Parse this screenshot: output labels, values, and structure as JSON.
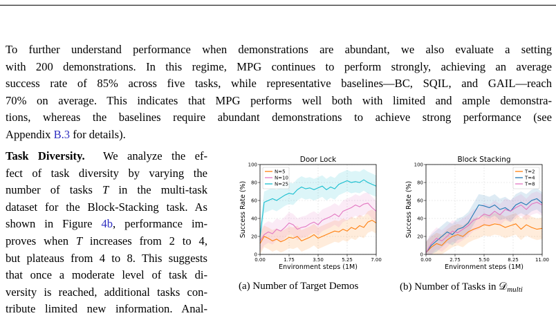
{
  "para1": [
    "To further understand performance when demonstrations are abundant, we also evaluate a setting",
    "with 200 demonstrations. In this regime, MPG continues to perform strongly, achieving an average",
    "success rate of 85% across five tasks, while representative baselines—BC, SQIL, and GAIL—reach",
    "70% on average. This indicates that MPG performs well both with limited and ample demonstra-",
    "tions, whereas the baselines require abundant demonstrations to achieve strong performance (see"
  ],
  "para1_last_prefix": "Appendix ",
  "para1_last_ref": "B.3",
  "para1_last_suffix": " for details).",
  "left_heading": "Task Diversity.",
  "left_l1_rest": "  We analyze the ef-",
  "left_l2": "fect of task diversity by varying the",
  "left_l3a": "number of tasks ",
  "left_l3_T": "T",
  "left_l3b": " in the multi-task",
  "left_l4": "dataset for the Block-Stacking task. As",
  "left_l5a": "shown in Figure ",
  "left_l5_ref": "4b",
  "left_l5b": ", performance im-",
  "left_l6a": "proves when ",
  "left_l6_T": "T",
  "left_l6b": " increases from 2 to 4,",
  "left_l7": "but plateaus from 4 to 8. This suggests",
  "left_l8": "that once a moderate level of task di-",
  "left_l9": "versity is reached, additional tasks con-",
  "left_l10": "tribute limited new information. Anal-",
  "caption_a": "(a) Number of Target Demos",
  "caption_b_prefix": "(b) Number of Tasks in ",
  "caption_b_D": "𝒟",
  "caption_b_sub": "multi",
  "chart_data": [
    {
      "type": "line",
      "title": "Door Lock",
      "xlabel": "Environment steps (1M)",
      "ylabel": "Success Rate (%)",
      "xlim": [
        0,
        7
      ],
      "ylim": [
        0,
        100
      ],
      "xticks": [
        "0.00",
        "1.75",
        "3.50",
        "5.25",
        "7.00"
      ],
      "yticks": [
        "0",
        "20",
        "40",
        "60",
        "80",
        "100"
      ],
      "grid": true,
      "legend": "top-left",
      "series": [
        {
          "name": "N=5",
          "color": "#ff7f0e",
          "x": [
            0,
            0.25,
            0.5,
            0.75,
            1.0,
            1.25,
            1.5,
            1.75,
            2.0,
            2.25,
            2.5,
            2.75,
            3.0,
            3.25,
            3.5,
            3.75,
            4.0,
            4.25,
            4.5,
            4.75,
            5.0,
            5.25,
            5.5,
            5.75,
            6.0,
            6.25,
            6.5,
            6.75,
            7.0
          ],
          "y": [
            12,
            20,
            18,
            15,
            17,
            14,
            16,
            19,
            18,
            20,
            15,
            17,
            19,
            22,
            18,
            20,
            22,
            24,
            26,
            25,
            28,
            26,
            30,
            28,
            32,
            30,
            36,
            38,
            35
          ]
        },
        {
          "name": "N=10",
          "color": "#e377c2",
          "x": [
            0,
            0.25,
            0.5,
            0.75,
            1.0,
            1.25,
            1.5,
            1.75,
            2.0,
            2.25,
            2.5,
            2.75,
            3.0,
            3.25,
            3.5,
            3.75,
            4.0,
            4.25,
            4.5,
            4.75,
            5.0,
            5.25,
            5.5,
            5.75,
            6.0,
            6.25,
            6.5,
            6.75,
            7.0
          ],
          "y": [
            15,
            22,
            25,
            23,
            28,
            26,
            30,
            35,
            33,
            28,
            30,
            31,
            34,
            36,
            33,
            38,
            40,
            42,
            45,
            42,
            48,
            50,
            52,
            55,
            53,
            56,
            57,
            52,
            48
          ]
        },
        {
          "name": "N=25",
          "color": "#17becf",
          "x": [
            0,
            0.25,
            0.5,
            0.75,
            1.0,
            1.25,
            1.5,
            1.75,
            2.0,
            2.25,
            2.5,
            2.75,
            3.0,
            3.25,
            3.5,
            3.75,
            4.0,
            4.25,
            4.5,
            4.75,
            5.0,
            5.25,
            5.5,
            5.75,
            6.0,
            6.25,
            6.5,
            6.75,
            7.0
          ],
          "y": [
            20,
            58,
            60,
            62,
            60,
            63,
            66,
            68,
            67,
            72,
            75,
            73,
            74,
            72,
            74,
            76,
            72,
            75,
            73,
            78,
            80,
            82,
            80,
            81,
            80,
            83,
            80,
            78,
            76
          ]
        }
      ]
    },
    {
      "type": "line",
      "title": "Block Stacking",
      "xlabel": "Environment steps (1M)",
      "ylabel": "Success Rate (%)",
      "xlim": [
        0,
        11
      ],
      "ylim": [
        0,
        100
      ],
      "xticks": [
        "0.00",
        "2.75",
        "5.50",
        "8.25",
        "11.00"
      ],
      "yticks": [
        "0",
        "20",
        "40",
        "60",
        "80",
        "100"
      ],
      "grid": true,
      "legend": "top-right",
      "series": [
        {
          "name": "T=2",
          "color": "#ff7f0e",
          "x": [
            0,
            0.5,
            1.0,
            1.5,
            2.0,
            2.5,
            3.0,
            3.5,
            4.0,
            4.5,
            5.0,
            5.5,
            6.0,
            6.5,
            7.0,
            7.5,
            8.0,
            8.5,
            9.0,
            9.5,
            10.0,
            10.5,
            11.0
          ],
          "y": [
            2,
            8,
            12,
            10,
            16,
            20,
            22,
            20,
            25,
            28,
            30,
            33,
            32,
            34,
            33,
            30,
            32,
            34,
            28,
            33,
            30,
            28,
            29
          ]
        },
        {
          "name": "T=4",
          "color": "#1f77b4",
          "x": [
            0,
            0.5,
            1.0,
            1.5,
            2.0,
            2.5,
            3.0,
            3.5,
            4.0,
            4.5,
            5.0,
            5.5,
            6.0,
            6.5,
            7.0,
            7.5,
            8.0,
            8.5,
            9.0,
            9.5,
            10.0,
            10.5,
            11.0
          ],
          "y": [
            2,
            10,
            15,
            20,
            25,
            22,
            28,
            30,
            35,
            45,
            55,
            54,
            52,
            55,
            50,
            52,
            48,
            55,
            58,
            55,
            60,
            62,
            57
          ]
        },
        {
          "name": "T=8",
          "color": "#e377c2",
          "x": [
            0,
            0.5,
            1.0,
            1.5,
            2.0,
            2.5,
            3.0,
            3.5,
            4.0,
            4.5,
            5.0,
            5.5,
            6.0,
            6.5,
            7.0,
            7.5,
            8.0,
            8.5,
            9.0,
            9.5,
            10.0,
            10.5,
            11.0
          ],
          "y": [
            2,
            12,
            18,
            15,
            20,
            26,
            24,
            28,
            32,
            38,
            40,
            45,
            43,
            48,
            44,
            50,
            48,
            52,
            55,
            50,
            56,
            58,
            55
          ]
        }
      ]
    }
  ]
}
